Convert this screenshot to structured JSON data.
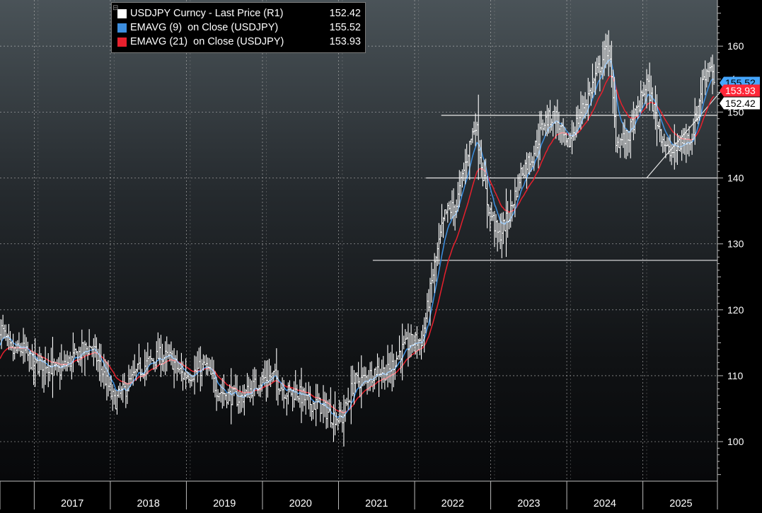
{
  "chart_data": {
    "type": "line",
    "title": "",
    "ylim": [
      94,
      167
    ],
    "xlim": [
      2016.55,
      2025.98
    ],
    "y_ticks": [
      100,
      110,
      120,
      130,
      140,
      150,
      160
    ],
    "x_ticks": [
      2017,
      2018,
      2019,
      2020,
      2021,
      2022,
      2023,
      2024,
      2025
    ],
    "x_tick_labels": [
      "2017",
      "2018",
      "2019",
      "2020",
      "2021",
      "2022",
      "2023",
      "2024",
      "2025"
    ],
    "grid": true,
    "legend_position": "top-left",
    "series": [
      {
        "name": "USDJPY Curncy - Last Price (R1)",
        "color": "#ffffff",
        "last_value": "152.42",
        "style": "weekly bars",
        "x": [
          2016.55,
          2016.7,
          2016.85,
          2017.0,
          2017.15,
          2017.3,
          2017.45,
          2017.6,
          2017.75,
          2017.9,
          2018.05,
          2018.2,
          2018.35,
          2018.5,
          2018.65,
          2018.8,
          2018.95,
          2019.1,
          2019.25,
          2019.4,
          2019.55,
          2019.7,
          2019.85,
          2020.0,
          2020.15,
          2020.3,
          2020.45,
          2020.6,
          2020.75,
          2020.9,
          2021.05,
          2021.2,
          2021.35,
          2021.5,
          2021.65,
          2021.8,
          2021.95,
          2022.1,
          2022.25,
          2022.4,
          2022.55,
          2022.7,
          2022.8,
          2022.95,
          2023.1,
          2023.25,
          2023.4,
          2023.55,
          2023.7,
          2023.85,
          2024.0,
          2024.15,
          2024.3,
          2024.45,
          2024.55,
          2024.65,
          2024.8,
          2024.95,
          2025.05,
          2025.2,
          2025.35,
          2025.5,
          2025.65,
          2025.8,
          2025.9,
          2025.95
        ],
        "values": [
          117.5,
          113.5,
          114.0,
          111.5,
          112.0,
          110.5,
          112.0,
          113.5,
          114.5,
          110.5,
          106.0,
          108.0,
          110.5,
          112.0,
          113.0,
          112.5,
          110.0,
          110.5,
          111.5,
          108.0,
          107.0,
          106.5,
          108.0,
          109.5,
          110.0,
          107.5,
          107.5,
          106.0,
          105.5,
          104.0,
          103.5,
          109.0,
          109.5,
          111.0,
          110.5,
          113.5,
          115.0,
          115.5,
          126.0,
          134.5,
          136.0,
          144.0,
          148.5,
          136.5,
          131.0,
          134.5,
          141.0,
          143.5,
          148.5,
          149.5,
          144.5,
          149.0,
          153.0,
          157.5,
          160.0,
          145.5,
          146.0,
          151.0,
          154.5,
          148.0,
          143.5,
          145.0,
          146.5,
          155.5,
          157.5,
          152.4
        ]
      },
      {
        "name": "EMAVG (9)  on Close (USDJPY)",
        "color": "#3d8fe0",
        "last_value": "155.52"
      },
      {
        "name": "EMAVG (21)  on Close (USDJPY)",
        "color": "#e8202d",
        "last_value": "153.93"
      }
    ],
    "annotations": {
      "horizontal_lines": [
        {
          "y": 149.5,
          "x_from": 2022.35,
          "x_to": 2025.98
        },
        {
          "y": 140.0,
          "x_from": 2022.15,
          "x_to": 2025.98
        },
        {
          "y": 127.5,
          "x_from": 2021.45,
          "x_to": 2025.98
        }
      ],
      "trend_line": {
        "x1": 2025.05,
        "y1": 140.0,
        "x2": 2026.2,
        "y2": 155.5
      }
    },
    "price_tags": [
      {
        "text": "155.52",
        "value": 155.52,
        "bg": "#45a6ff",
        "fg": "#000000"
      },
      {
        "text": "153.93",
        "value": 153.93,
        "bg": "#ff2638",
        "fg": "#ffffff"
      },
      {
        "text": "152.42",
        "value": 152.42,
        "bg": "#ffffff",
        "fg": "#000000"
      }
    ]
  }
}
